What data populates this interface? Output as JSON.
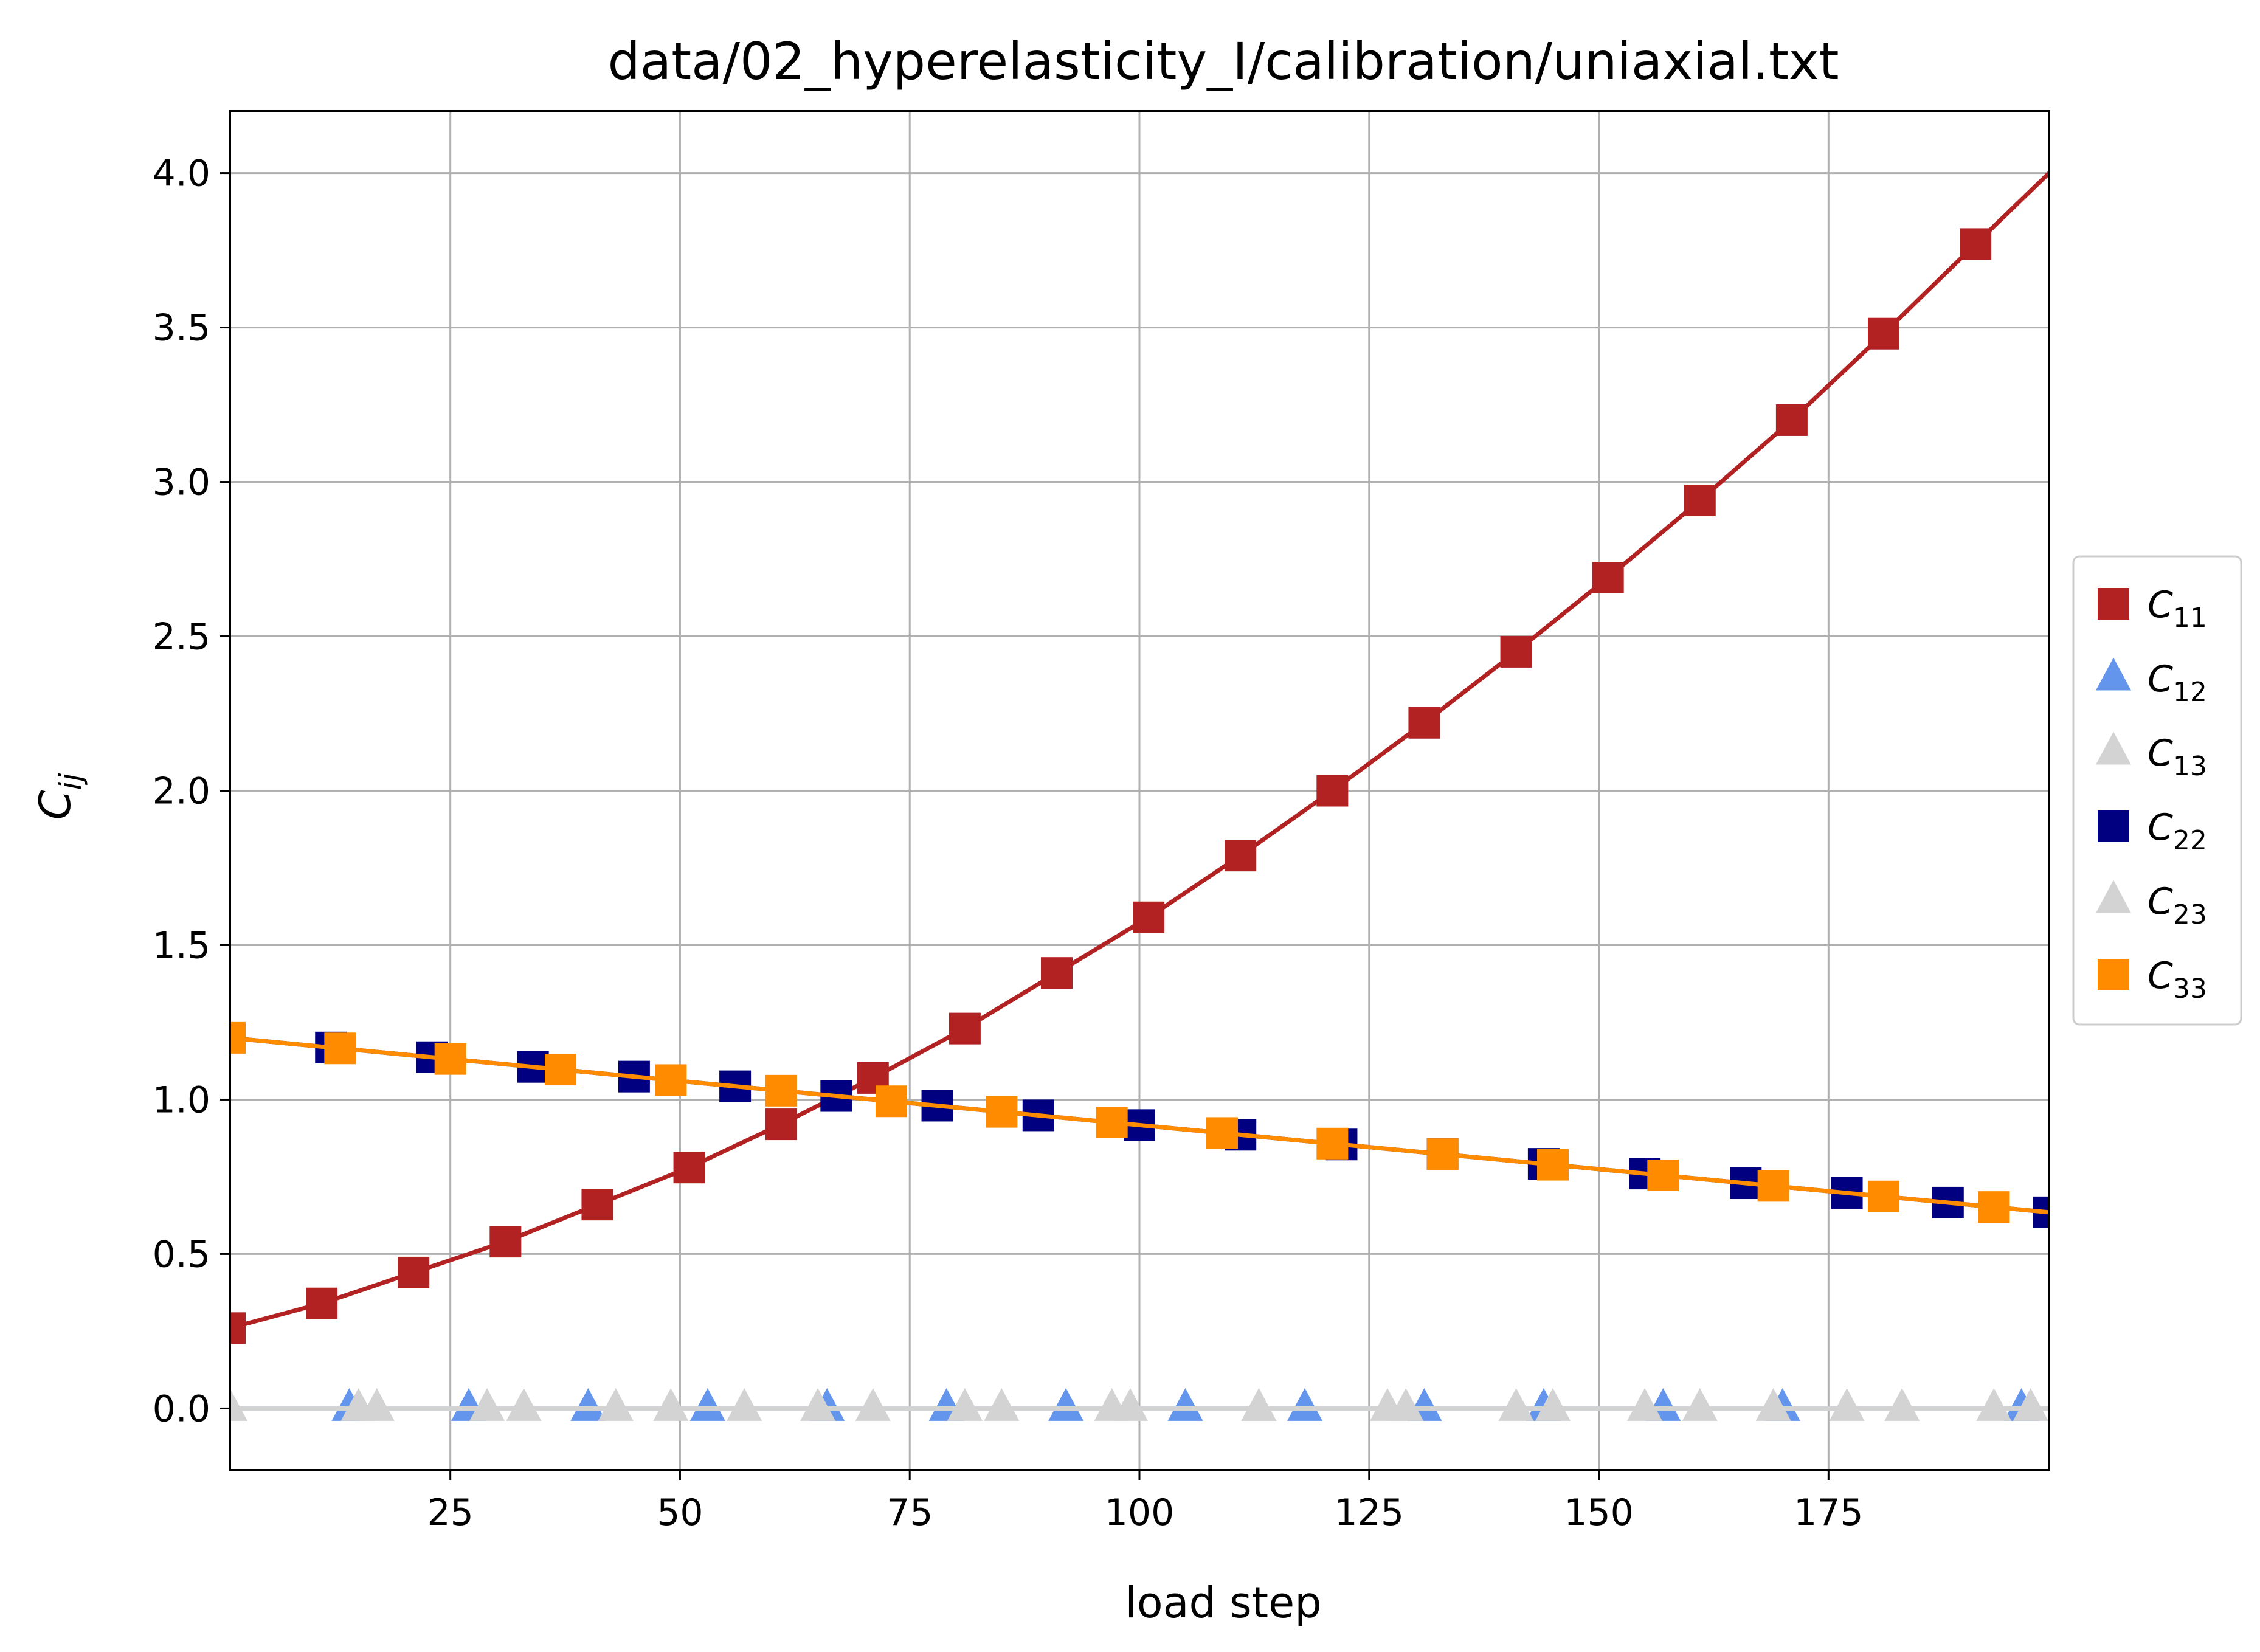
{
  "chart_data": {
    "type": "line",
    "title": "data/02_hyperelasticity_I/calibration/uniaxial.txt",
    "xlabel": "load step",
    "ylabel": {
      "base": "C",
      "sub": "ij"
    },
    "xlim": [
      1,
      199
    ],
    "ylim": [
      -0.2,
      4.2
    ],
    "x_ticks": [
      25,
      50,
      75,
      100,
      125,
      150,
      175
    ],
    "y_ticks": [
      0.0,
      0.5,
      1.0,
      1.5,
      2.0,
      2.5,
      3.0,
      3.5,
      4.0
    ],
    "y_tick_labels": [
      "0.0",
      "0.5",
      "1.0",
      "1.5",
      "2.0",
      "2.5",
      "3.0",
      "3.5",
      "4.0"
    ],
    "grid": true,
    "legend_position": "right, outside plot",
    "series": [
      {
        "name": "C11",
        "label_base": "C",
        "label_sub": "11",
        "color": "#b22222",
        "marker": "square",
        "x": [
          1,
          11,
          21,
          31,
          41,
          51,
          61,
          71,
          81,
          91,
          101,
          111,
          121,
          131,
          141,
          151,
          161,
          171,
          181,
          191,
          199
        ],
        "y": [
          0.26,
          0.34,
          0.44,
          0.54,
          0.66,
          0.78,
          0.92,
          1.07,
          1.23,
          1.41,
          1.59,
          1.79,
          2.0,
          2.22,
          2.45,
          2.69,
          2.94,
          3.2,
          3.48,
          3.77,
          4.0
        ],
        "marker_x": [
          1,
          11,
          21,
          31,
          41,
          51,
          61,
          71,
          81,
          91,
          101,
          111,
          121,
          131,
          141,
          151,
          161,
          171,
          181,
          191
        ]
      },
      {
        "name": "C12",
        "label_base": "C",
        "label_sub": "12",
        "color": "#6495ed",
        "marker": "triangle",
        "x": [
          1,
          199
        ],
        "y": [
          0,
          0
        ],
        "marker_x": [
          14,
          27,
          40,
          53,
          66,
          79,
          92,
          105,
          118,
          131,
          144,
          157,
          170,
          196
        ]
      },
      {
        "name": "C13",
        "label_base": "C",
        "label_sub": "13",
        "color": "#d3d3d3",
        "marker": "triangle",
        "x": [
          1,
          199
        ],
        "y": [
          0,
          0
        ],
        "marker_x": [
          1,
          17,
          33,
          49,
          65,
          81,
          97,
          113,
          129,
          145,
          161,
          177,
          193
        ]
      },
      {
        "name": "C22",
        "label_base": "C",
        "label_sub": "22",
        "color": "#000080",
        "marker": "square",
        "x": [
          1,
          199
        ],
        "y": [
          1.2,
          0.635
        ],
        "marker_x": [
          12,
          23,
          34,
          45,
          56,
          67,
          78,
          89,
          100,
          111,
          122,
          133,
          144,
          155,
          166,
          177,
          188,
          199
        ]
      },
      {
        "name": "C23",
        "label_base": "C",
        "label_sub": "23",
        "color": "#d3d3d3",
        "marker": "triangle",
        "x": [
          1,
          199
        ],
        "y": [
          0,
          0
        ],
        "marker_x": [
          15,
          29,
          43,
          57,
          71,
          85,
          99,
          113,
          127,
          141,
          155,
          169,
          183,
          197
        ]
      },
      {
        "name": "C33",
        "label_base": "C",
        "label_sub": "33",
        "color": "#ff8c00",
        "marker": "square",
        "x": [
          1,
          199
        ],
        "y": [
          1.2,
          0.635
        ],
        "marker_x": [
          1,
          13,
          25,
          37,
          49,
          61,
          73,
          85,
          97,
          109,
          121,
          133,
          145,
          157,
          169,
          181,
          193
        ]
      }
    ]
  }
}
